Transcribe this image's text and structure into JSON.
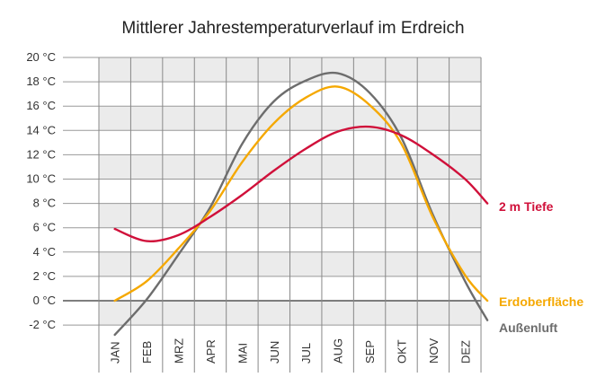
{
  "chart_data": {
    "type": "line",
    "title": "Mittlerer Jahrestemperaturverlauf im Erdreich",
    "xlabel": "",
    "ylabel": "",
    "categories": [
      "JAN",
      "FEB",
      "MRZ",
      "APR",
      "MAI",
      "JUN",
      "JUL",
      "AUG",
      "SEP",
      "OKT",
      "NOV",
      "DEZ"
    ],
    "x": [
      1,
      2,
      3,
      4,
      5,
      6,
      7,
      8,
      9,
      10,
      11,
      12,
      12.7
    ],
    "ylim": [
      -2,
      20
    ],
    "yticks": [
      20,
      18,
      16,
      14,
      12,
      10,
      8,
      6,
      4,
      2,
      0,
      -2
    ],
    "ytick_labels": [
      "20 °C",
      "18 °C",
      "16 °C",
      "14 °C",
      "12 °C",
      "10 °C",
      "8 °C",
      "6 °C",
      "4 °C",
      "2 °C",
      "0 °C",
      "-2 °C"
    ],
    "grid": true,
    "legend": "right (labels at line ends)",
    "series": [
      {
        "name": "2 m Tiefe",
        "color": "#d0103a",
        "values": [
          5.9,
          4.9,
          5.4,
          6.9,
          8.7,
          10.7,
          12.5,
          13.9,
          14.3,
          13.6,
          12.0,
          10.0,
          8.0
        ]
      },
      {
        "name": "Erdoberfläche",
        "color": "#f5a800",
        "values": [
          0.0,
          1.6,
          4.3,
          7.4,
          11.4,
          14.6,
          16.7,
          17.6,
          16.1,
          12.9,
          6.8,
          2.1,
          0.0
        ]
      },
      {
        "name": "Außenluft",
        "color": "#6d6d6d",
        "values": [
          -2.8,
          0.1,
          3.8,
          7.7,
          12.9,
          16.4,
          18.1,
          18.7,
          17.1,
          13.4,
          7.0,
          1.6,
          -1.6
        ]
      }
    ]
  }
}
